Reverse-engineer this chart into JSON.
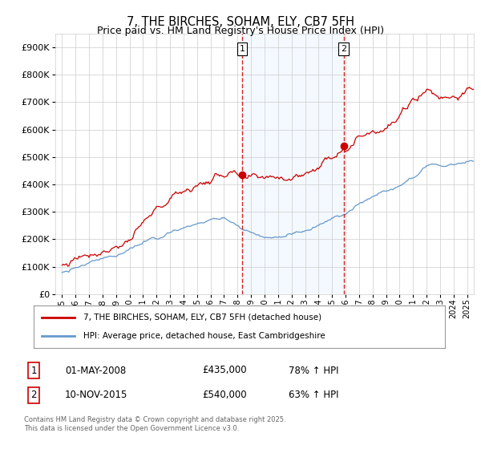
{
  "title": "7, THE BIRCHES, SOHAM, ELY, CB7 5FH",
  "subtitle": "Price paid vs. HM Land Registry's House Price Index (HPI)",
  "legend_line1": "7, THE BIRCHES, SOHAM, ELY, CB7 5FH (detached house)",
  "legend_line2": "HPI: Average price, detached house, East Cambridgeshire",
  "sale1_date": "01-MAY-2008",
  "sale1_price": 435000,
  "sale1_label": "78% ↑ HPI",
  "sale2_date": "10-NOV-2015",
  "sale2_price": 540000,
  "sale2_label": "63% ↑ HPI",
  "footnote": "Contains HM Land Registry data © Crown copyright and database right 2025.\nThis data is licensed under the Open Government Licence v3.0.",
  "sale1_x": 2008.33,
  "sale2_x": 2015.86,
  "ylim": [
    0,
    950000
  ],
  "xlim": [
    1994.5,
    2025.5
  ],
  "red_color": "#cc0000",
  "blue_color": "#6699cc",
  "shade_color": "#ddeeff",
  "background_color": "#ffffff",
  "grid_color": "#cccccc"
}
